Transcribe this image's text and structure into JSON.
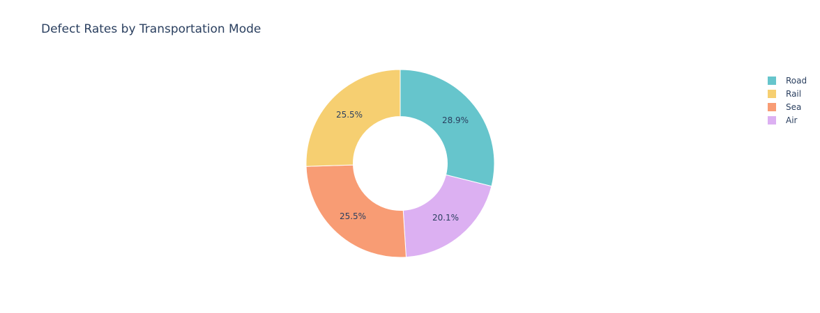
{
  "chart_data": {
    "type": "pie",
    "title": "Defect Rates by Transportation Mode",
    "hole": 0.5,
    "direction": "clockwise",
    "categories": [
      "Road",
      "Air",
      "Sea",
      "Rail"
    ],
    "values": [
      28.9,
      20.1,
      25.5,
      25.5
    ],
    "colors": [
      "#66c5cc",
      "#dcb0f2",
      "#f89c74",
      "#f6cf71"
    ],
    "labels": [
      "28.9%",
      "20.1%",
      "25.5%",
      "25.5%"
    ],
    "legend": {
      "position": "right",
      "entries": [
        {
          "label": "Road",
          "color": "#66c5cc"
        },
        {
          "label": "Rail",
          "color": "#f6cf71"
        },
        {
          "label": "Sea",
          "color": "#f89c74"
        },
        {
          "label": "Air",
          "color": "#dcb0f2"
        }
      ]
    }
  }
}
